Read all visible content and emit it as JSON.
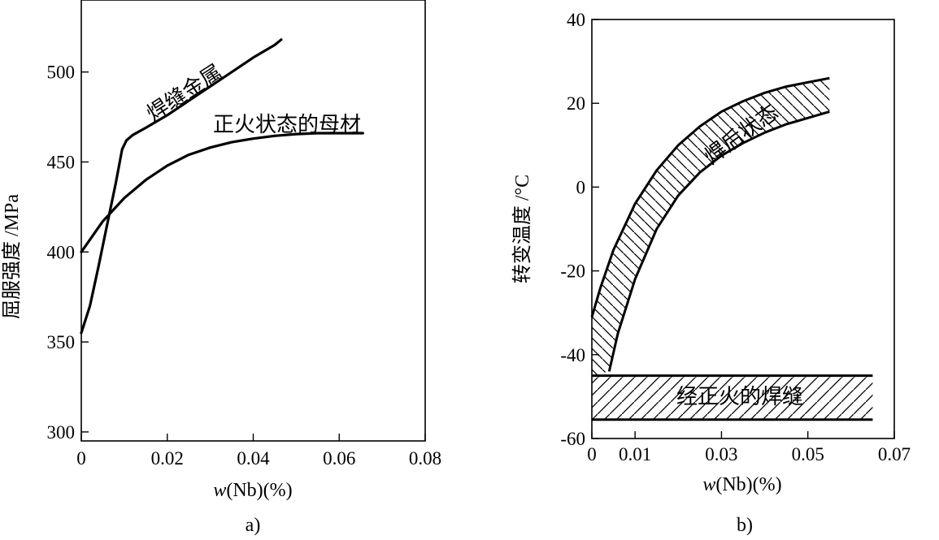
{
  "chart_data": [
    {
      "type": "line",
      "caption": "a)",
      "xlabel_var": "w",
      "xlabel_rest": "(Nb)(%)",
      "ylabel": "屈服强度 /MPa",
      "xlim": [
        0,
        0.08
      ],
      "ylim": [
        295,
        540
      ],
      "x_ticks": [
        0,
        0.02,
        0.04,
        0.06,
        0.08
      ],
      "x_tick_labels": [
        "0",
        "0.02",
        "0.04",
        "0.06",
        "0.08"
      ],
      "y_ticks": [
        300,
        350,
        400,
        450,
        500
      ],
      "y_tick_labels": [
        "300",
        "350",
        "400",
        "450",
        "500"
      ],
      "series": [
        {
          "name": "焊缝金属",
          "x": [
            0,
            0.002,
            0.004,
            0.006,
            0.008,
            0.0095,
            0.0105,
            0.012,
            0.015,
            0.02,
            0.025,
            0.03,
            0.035,
            0.04,
            0.045,
            0.0465
          ],
          "y": [
            355,
            370,
            392,
            415,
            438,
            457,
            462,
            465,
            469,
            476,
            484,
            492,
            500,
            508,
            515,
            518
          ]
        },
        {
          "name": "正火状态的母材",
          "x": [
            0,
            0.005,
            0.01,
            0.015,
            0.02,
            0.025,
            0.03,
            0.035,
            0.04,
            0.045,
            0.05,
            0.055,
            0.06,
            0.0655
          ],
          "y": [
            400,
            417,
            430,
            440,
            448,
            454,
            458,
            461,
            463,
            464.5,
            465.5,
            466,
            466,
            466
          ]
        }
      ]
    },
    {
      "type": "area",
      "caption": "b)",
      "xlabel_var": "w",
      "xlabel_rest": "(Nb)(%)",
      "ylabel": "转变温度 /°C",
      "xlim": [
        0,
        0.07
      ],
      "ylim": [
        -60,
        40
      ],
      "x_ticks": [
        0,
        0.01,
        0.03,
        0.05,
        0.07
      ],
      "x_tick_labels": [
        "0",
        "0.01",
        "0.03",
        "0.05",
        "0.07"
      ],
      "y_ticks": [
        -60,
        -40,
        -20,
        0,
        20,
        40
      ],
      "y_tick_labels": [
        "-60",
        "-40",
        "-20",
        "0",
        "20",
        "40"
      ],
      "bands": [
        {
          "name": "焊后状态",
          "upper": {
            "x": [
              0,
              0.002,
              0.005,
              0.01,
              0.015,
              0.02,
              0.025,
              0.03,
              0.035,
              0.04,
              0.045,
              0.05,
              0.055
            ],
            "y": [
              -31,
              -24,
              -15,
              -4,
              4,
              10,
              14.5,
              18,
              20.5,
              22.5,
              24,
              25,
              26
            ]
          },
          "lower": {
            "x": [
              0.004,
              0.006,
              0.01,
              0.015,
              0.02,
              0.025,
              0.03,
              0.035,
              0.04,
              0.045,
              0.05,
              0.055
            ],
            "y": [
              -44,
              -35,
              -22,
              -10,
              -2,
              3.5,
              7.5,
              10.5,
              13,
              15,
              16.5,
              18
            ]
          }
        },
        {
          "name": "经正火的焊缝",
          "x_range": [
            0,
            0.065
          ],
          "y_range": [
            -55.5,
            -45
          ]
        }
      ]
    }
  ]
}
